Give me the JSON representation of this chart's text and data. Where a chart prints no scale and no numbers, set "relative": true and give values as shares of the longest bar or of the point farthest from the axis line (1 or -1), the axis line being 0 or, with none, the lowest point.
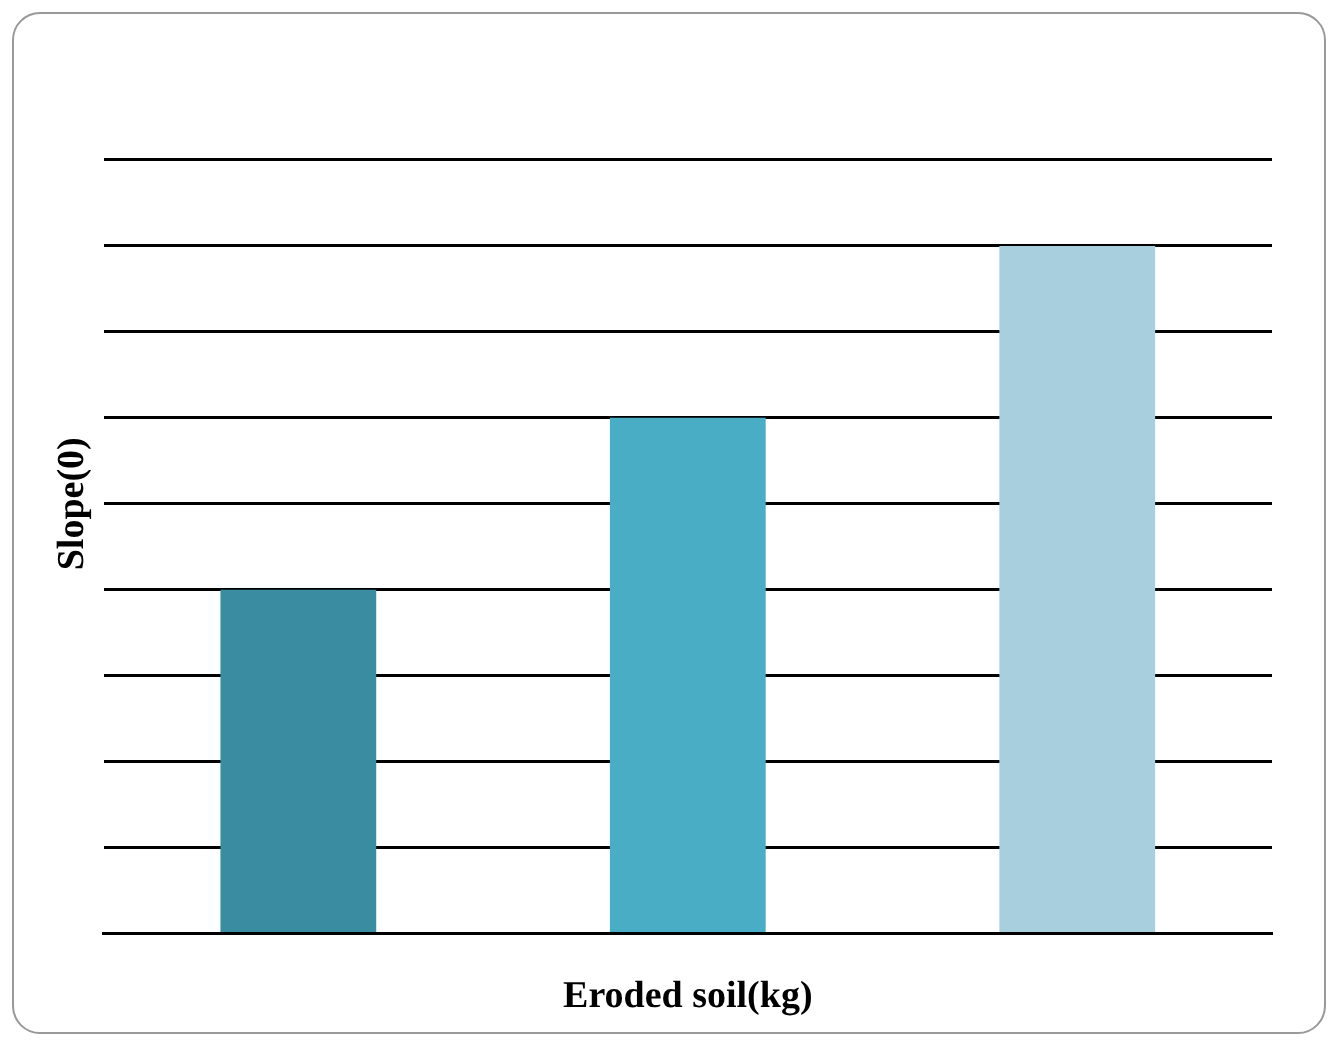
{
  "chart_data": {
    "type": "bar",
    "xlabel": "Eroded soil(kg)",
    "ylabel": "Slope(0)",
    "categories": [
      null,
      null,
      null
    ],
    "values": [
      0.5,
      0.75,
      1
    ],
    "colors": [
      "#3a8ca0",
      "#4aadc6",
      "#a7cfdd"
    ],
    "relative": true,
    "grid": "y"
  }
}
